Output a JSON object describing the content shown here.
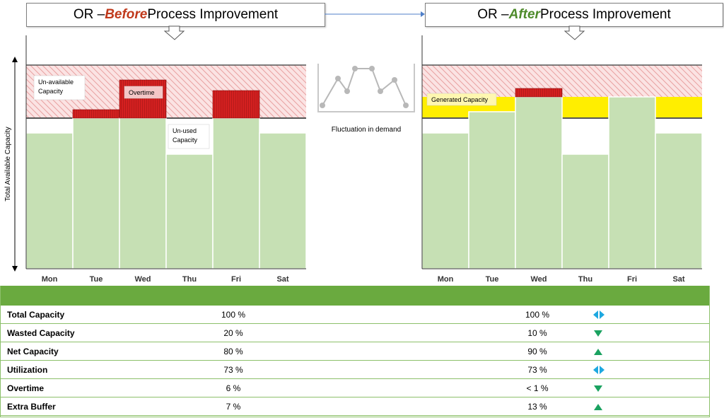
{
  "titles": {
    "before": {
      "prefix": "OR – ",
      "emphasis": "Before",
      "suffix": " Process Improvement"
    },
    "after": {
      "prefix": "OR – ",
      "emphasis": "After",
      "suffix": " Process Improvement"
    }
  },
  "center": {
    "caption": "Fluctuation in demand"
  },
  "colors": {
    "used": "#c6e0b4",
    "overtime": "#d42020",
    "unavailable_hatch": "#e8a0a0",
    "generated": "#ffee00",
    "table_header": "#6aaa3f",
    "arrow_up_down": "#1aa260",
    "arrow_neutral": "#1ea8e0"
  },
  "chart_data": [
    {
      "type": "bar",
      "title": "OR – Before Process Improvement",
      "ylabel": "Total Available Capacity",
      "categories": [
        "Mon",
        "Tue",
        "Wed",
        "Thu",
        "Fri",
        "Sat"
      ],
      "ylim": [
        0,
        100
      ],
      "capacity_line": 71,
      "unavailable_band": [
        71,
        96
      ],
      "series": [
        {
          "name": "Used capacity",
          "values": [
            64,
            71,
            71,
            54,
            71,
            64
          ]
        },
        {
          "name": "Overtime",
          "values": [
            0,
            4,
            18,
            0,
            13,
            0
          ]
        }
      ],
      "annotations": [
        "Un-available Capacity",
        "Overtime",
        "Un-used Capacity"
      ]
    },
    {
      "type": "bar",
      "title": "OR – After Process Improvement",
      "categories": [
        "Mon",
        "Tue",
        "Wed",
        "Thu",
        "Fri",
        "Sat"
      ],
      "ylim": [
        0,
        100
      ],
      "capacity_line": 71,
      "generated_band": [
        71,
        81
      ],
      "unavailable_band": [
        81,
        96
      ],
      "series": [
        {
          "name": "Used capacity",
          "values": [
            64,
            74,
            81,
            54,
            81,
            64
          ]
        },
        {
          "name": "Overtime",
          "values": [
            0,
            0,
            4,
            0,
            0,
            0
          ]
        }
      ],
      "annotations": [
        "Generated Capacity"
      ]
    }
  ],
  "table": {
    "rows": [
      {
        "label": "Total Capacity",
        "before": "100 %",
        "after": "100 %",
        "indicator": "neutral"
      },
      {
        "label": "Wasted Capacity",
        "before": "20 %",
        "after": "10 %",
        "indicator": "down"
      },
      {
        "label": "Net Capacity",
        "before": "80 %",
        "after": "90 %",
        "indicator": "up"
      },
      {
        "label": "Utilization",
        "before": "73 %",
        "after": "73 %",
        "indicator": "neutral"
      },
      {
        "label": "Overtime",
        "before": "6 %",
        "after": "< 1 %",
        "indicator": "down"
      },
      {
        "label": "Extra Buffer",
        "before": "7 %",
        "after": "13 %",
        "indicator": "up"
      }
    ]
  }
}
